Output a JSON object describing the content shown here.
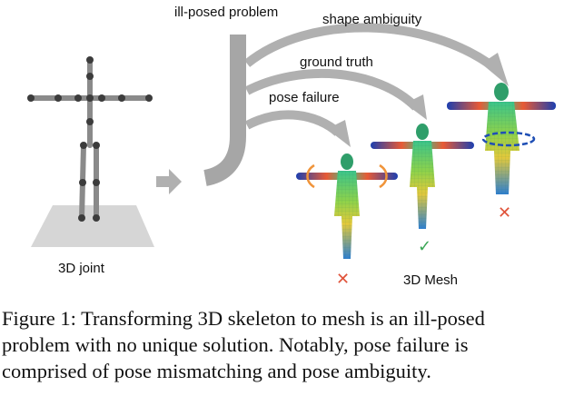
{
  "figure": {
    "labels": {
      "ill_posed": "ill-posed problem",
      "shape_ambiguity": "shape ambiguity",
      "ground_truth": "ground truth",
      "pose_failure": "pose failure",
      "joint": "3D joint",
      "mesh": "3D Mesh"
    },
    "marks": {
      "pose_failure": "✕",
      "ground_truth": "✓",
      "shape_ambiguity": "✕"
    },
    "colors": {
      "arrow": "#b0b0b0",
      "bar": "#a6a6a6",
      "skeleton": "#8a8a8a",
      "joint": "#3c3c3c",
      "floor": "#d6d6d6",
      "wrong": "#e0533a",
      "correct": "#3aa655",
      "rotation": "#f0943a",
      "ellipse": "#1f4fb5"
    }
  },
  "caption": {
    "line1": "Figure 1: Transforming 3D skeleton to mesh is an ill-posed",
    "line2": "problem with no unique solution.  Notably, pose failure is",
    "line3": "comprised of pose mismatching and pose ambiguity."
  }
}
